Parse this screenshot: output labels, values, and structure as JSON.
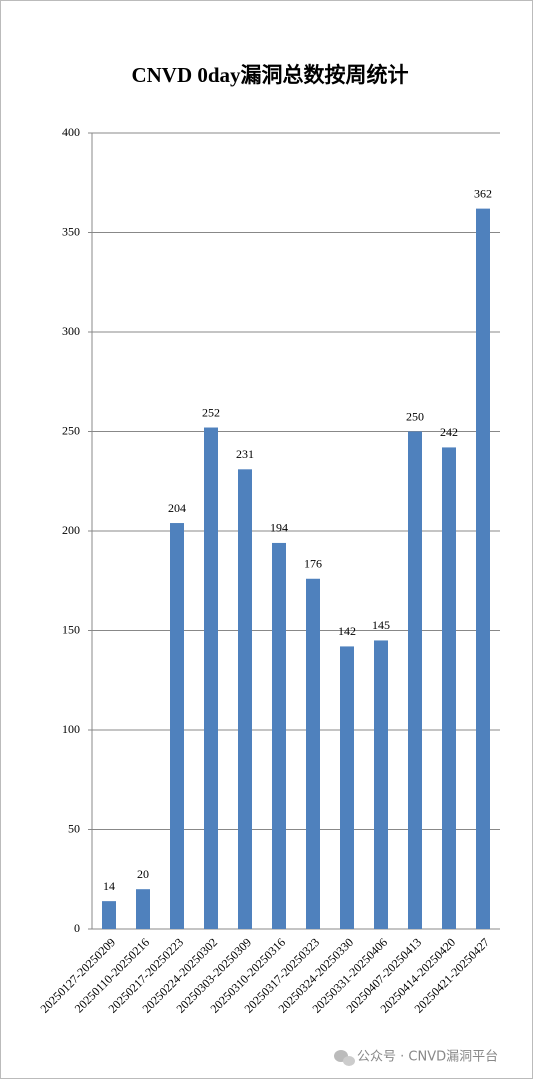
{
  "chart_data": {
    "type": "bar",
    "title": "CNVD 0day漏洞总数按周统计",
    "categories": [
      "20250127-20250209",
      "20250110-20250216",
      "20250217-20250223",
      "20250224-20250302",
      "20250303-20250309",
      "20250310-20250316",
      "20250317-20250323",
      "20250324-20250330",
      "20250331-20250406",
      "20250407-20250413",
      "20250414-20250420",
      "20250421-20250427"
    ],
    "values": [
      14,
      20,
      204,
      252,
      231,
      194,
      176,
      142,
      145,
      250,
      242,
      362
    ],
    "color": "#4f81bd",
    "ylim": [
      0,
      400
    ],
    "yticks": [
      0,
      50,
      100,
      150,
      200,
      250,
      300,
      350,
      400
    ],
    "grid": true,
    "watermark": "公众号 · CNVD漏洞平台"
  }
}
